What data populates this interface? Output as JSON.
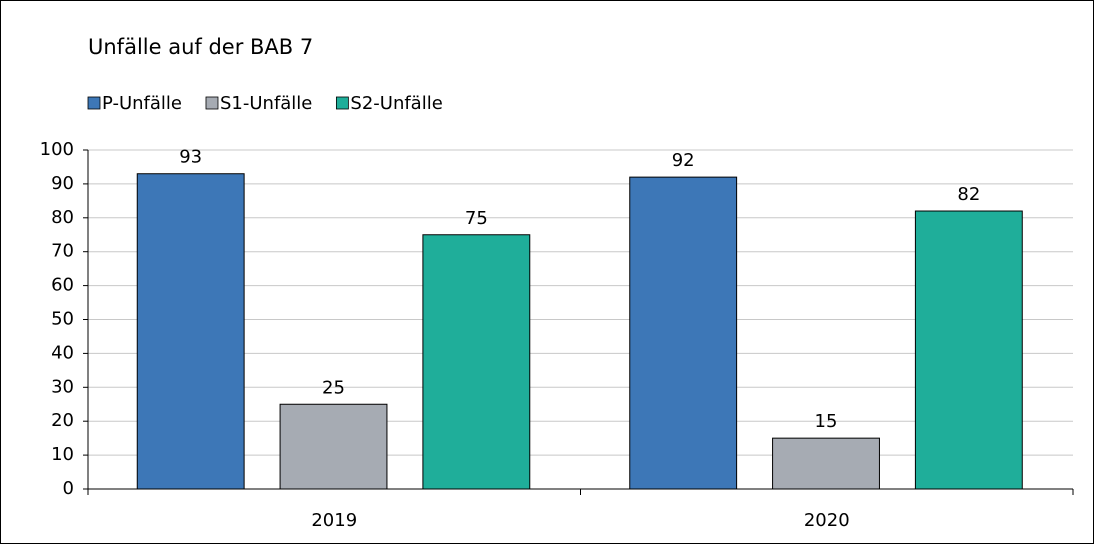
{
  "chart_data": {
    "type": "bar",
    "title": "Unfälle auf der BAB 7",
    "categories": [
      "2019",
      "2020"
    ],
    "series": [
      {
        "name": "P-Unfälle",
        "color": "#3d77b7",
        "values": [
          93,
          92
        ]
      },
      {
        "name": "S1-Unfälle",
        "color": "#a6abb3",
        "values": [
          25,
          15
        ]
      },
      {
        "name": "S2-Unfälle",
        "color": "#1fae9a",
        "values": [
          75,
          82
        ]
      }
    ],
    "ylim": [
      0,
      100
    ],
    "yticks": [
      0,
      10,
      20,
      30,
      40,
      50,
      60,
      70,
      80,
      90,
      100
    ],
    "grid": true,
    "legend": "top-left"
  }
}
